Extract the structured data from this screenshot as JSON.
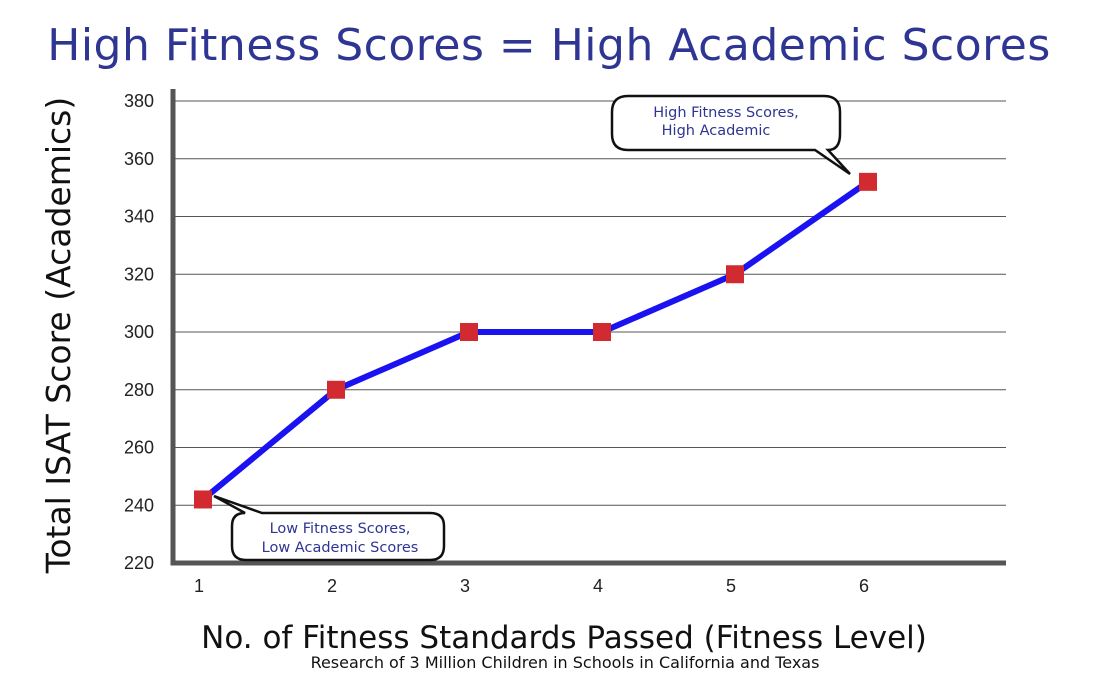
{
  "chart_data": {
    "type": "line",
    "title": "High Fitness Scores = High Academic Scores",
    "subtitle": "Research of 3 Million Children in Schools in California and Texas",
    "xlabel": "No. of Fitness Standards Passed (Fitness Level)",
    "ylabel": "Total ISAT Score (Academics)",
    "x": [
      1,
      2,
      3,
      4,
      5,
      6
    ],
    "y": [
      242,
      280,
      300,
      300,
      320,
      352
    ],
    "xlim": [
      0.8,
      7.0
    ],
    "ylim": [
      220,
      380
    ],
    "xticks": [
      "1",
      "2",
      "3",
      "4",
      "5",
      "6"
    ],
    "yticks": [
      "220",
      "240",
      "260",
      "280",
      "300",
      "320",
      "340",
      "360",
      "380"
    ],
    "grid": "horizontal",
    "legend": "none",
    "colors": {
      "line": "#1a12f0",
      "marker": "#d12a30",
      "title": "#2f3592",
      "callout_text": "#2f3592"
    },
    "annotations": [
      {
        "text_lines": [
          "Low Fitness Scores,",
          "Low Academic Scores"
        ],
        "target_x": 1,
        "target_y": 242
      },
      {
        "text_lines": [
          "High Fitness Scores,",
          "High Academic"
        ],
        "target_x": 6,
        "target_y": 352
      }
    ]
  }
}
